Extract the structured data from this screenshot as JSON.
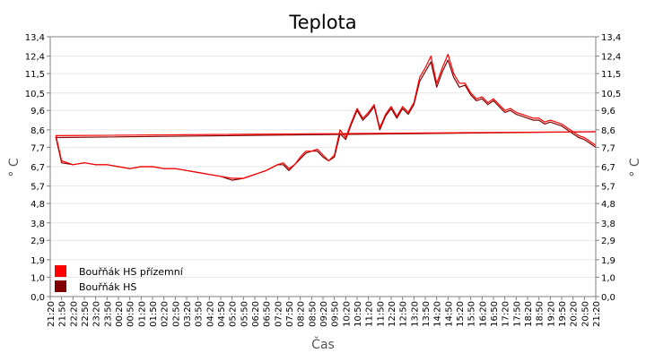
{
  "chart_data": {
    "type": "line",
    "title": "Teplota",
    "xlabel": "Čas",
    "ylabel": "° C",
    "ylim": [
      0,
      13.4
    ],
    "y_ticks": [
      0.0,
      1.0,
      1.9,
      2.9,
      3.8,
      4.8,
      5.7,
      6.7,
      7.7,
      8.6,
      9.6,
      10.5,
      11.5,
      12.4,
      13.4
    ],
    "y_tick_labels": [
      "0,0",
      "1,0",
      "1,9",
      "2,9",
      "3,8",
      "4,8",
      "5,7",
      "6,7",
      "7,7",
      "8,6",
      "9,6",
      "10,5",
      "11,5",
      "12,4",
      "13,4"
    ],
    "x_tick_labels": [
      "21:20",
      "21:50",
      "22:20",
      "22:50",
      "23:20",
      "23:50",
      "00:20",
      "00:50",
      "01:20",
      "01:50",
      "02:20",
      "02:50",
      "03:20",
      "03:50",
      "04:20",
      "04:50",
      "05:20",
      "05:50",
      "06:20",
      "06:50",
      "07:20",
      "07:50",
      "08:20",
      "08:50",
      "09:20",
      "09:50",
      "10:20",
      "10:50",
      "11:20",
      "11:50",
      "12:20",
      "12:50",
      "13:20",
      "13:50",
      "14:20",
      "14:50",
      "15:20",
      "15:50",
      "16:20",
      "16:50",
      "17:20",
      "17:50",
      "18:20",
      "18:50",
      "19:20",
      "19:50",
      "20:20",
      "20:50",
      "21:20"
    ],
    "grid": true,
    "legend_position": "bottom-left",
    "x": [
      "21:20",
      "21:35",
      "21:50",
      "22:20",
      "22:50",
      "23:20",
      "23:50",
      "00:20",
      "00:50",
      "01:20",
      "01:50",
      "02:20",
      "02:50",
      "03:20",
      "03:50",
      "04:20",
      "04:50",
      "05:20",
      "05:50",
      "06:20",
      "06:50",
      "07:20",
      "07:35",
      "07:50",
      "08:05",
      "08:20",
      "08:35",
      "08:50",
      "09:05",
      "09:20",
      "09:35",
      "09:50",
      "10:05",
      "10:20",
      "10:35",
      "10:50",
      "11:05",
      "11:20",
      "11:35",
      "11:50",
      "12:05",
      "12:20",
      "12:35",
      "12:50",
      "13:05",
      "13:20",
      "13:35",
      "13:50",
      "14:05",
      "14:20",
      "14:35",
      "14:50",
      "15:05",
      "15:20",
      "15:35",
      "15:50",
      "16:05",
      "16:20",
      "16:35",
      "16:50",
      "17:05",
      "17:20",
      "17:35",
      "17:50",
      "18:05",
      "18:20",
      "18:35",
      "18:50",
      "19:05",
      "19:20",
      "19:35",
      "19:50",
      "20:05",
      "20:20",
      "20:35",
      "20:50",
      "21:05",
      "21:20"
    ],
    "series": [
      {
        "name": "Bouřňák HS přízemní",
        "color": "#ff0000",
        "values": [
          8.5,
          8.3,
          7.0,
          6.8,
          6.9,
          6.8,
          6.8,
          6.7,
          6.6,
          6.7,
          6.7,
          6.6,
          6.6,
          6.5,
          6.4,
          6.3,
          6.2,
          6.1,
          6.1,
          6.3,
          6.5,
          6.8,
          6.9,
          6.6,
          6.8,
          7.2,
          7.5,
          7.5,
          7.6,
          7.3,
          7.0,
          7.3,
          8.6,
          8.2,
          9.0,
          9.7,
          9.2,
          9.5,
          9.9,
          8.7,
          9.4,
          9.8,
          9.3,
          9.8,
          9.5,
          10.0,
          11.3,
          11.8,
          12.4,
          11.0,
          11.8,
          12.5,
          11.5,
          11.0,
          11.0,
          10.5,
          10.2,
          10.3,
          10.0,
          10.2,
          9.9,
          9.6,
          9.7,
          9.5,
          9.4,
          9.3,
          9.2,
          9.2,
          9.0,
          9.1,
          9.0,
          8.9,
          8.7,
          8.5,
          8.3,
          8.2,
          8.0,
          7.8
        ]
      },
      {
        "name": "Bouřňák HS",
        "color": "#800000",
        "values": [
          8.5,
          8.2,
          6.9,
          6.8,
          6.9,
          6.8,
          6.8,
          6.7,
          6.6,
          6.7,
          6.7,
          6.6,
          6.6,
          6.5,
          6.4,
          6.3,
          6.2,
          6.0,
          6.1,
          6.3,
          6.5,
          6.8,
          6.8,
          6.5,
          6.8,
          7.1,
          7.4,
          7.5,
          7.5,
          7.2,
          7.0,
          7.2,
          8.4,
          8.1,
          8.9,
          9.6,
          9.1,
          9.4,
          9.8,
          8.6,
          9.3,
          9.7,
          9.2,
          9.7,
          9.4,
          9.9,
          11.1,
          11.6,
          12.1,
          10.8,
          11.6,
          12.2,
          11.3,
          10.8,
          10.9,
          10.4,
          10.1,
          10.2,
          9.9,
          10.1,
          9.8,
          9.5,
          9.6,
          9.4,
          9.3,
          9.2,
          9.1,
          9.1,
          8.9,
          9.0,
          8.9,
          8.8,
          8.6,
          8.4,
          8.2,
          8.1,
          7.9,
          7.7
        ]
      }
    ]
  }
}
